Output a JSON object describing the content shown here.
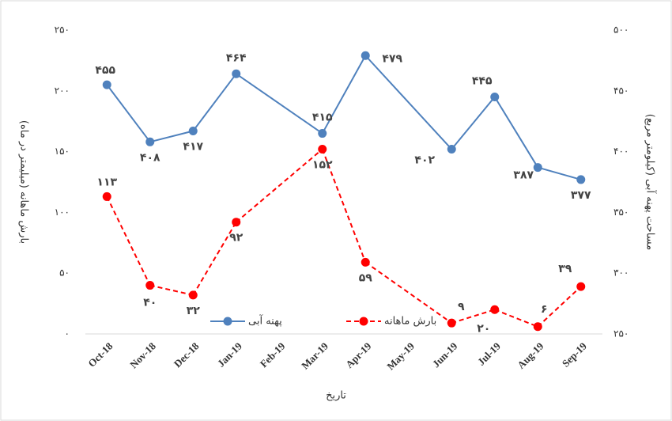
{
  "chart_data": {
    "type": "line",
    "x_label": "تاریخ",
    "y_label": "بارش ماهانه (میلیمتر در ماه)",
    "y2_label": "مساحت پهنه آبی (کیلومتر مربع)",
    "categories": [
      "Oct-18",
      "Nov-18",
      "Dec-18",
      "Jan-19",
      "Feb-19",
      "Mar-19",
      "Apr-19",
      "May-19",
      "Jun-19",
      "Jul-19",
      "Aug-19",
      "Sep-19"
    ],
    "ylim": [
      0,
      250
    ],
    "yticks": [
      {
        "value": 0,
        "label": "۰"
      },
      {
        "value": 50,
        "label": "۵۰"
      },
      {
        "value": 100,
        "label": "۱۰۰"
      },
      {
        "value": 150,
        "label": "۱۵۰"
      },
      {
        "value": 200,
        "label": "۲۰۰"
      },
      {
        "value": 250,
        "label": "۲۵۰"
      }
    ],
    "y2lim": [
      250,
      500
    ],
    "y2ticks": [
      {
        "value": 250,
        "label": "۲۵۰"
      },
      {
        "value": 300,
        "label": "۳۰۰"
      },
      {
        "value": 350,
        "label": "۳۵۰"
      },
      {
        "value": 400,
        "label": "۴۰۰"
      },
      {
        "value": 450,
        "label": "۴۵۰"
      },
      {
        "value": 500,
        "label": "۵۰۰"
      }
    ],
    "series": [
      {
        "name": "پهنه آبی",
        "color": "#4f81bd",
        "axis": "y2",
        "dash": false,
        "values": [
          455,
          408,
          417,
          464,
          null,
          415,
          479,
          null,
          402,
          445,
          387,
          377
        ],
        "value_labels": [
          "۴۵۵",
          "۴۰۸",
          "۴۱۷",
          "۴۶۴",
          null,
          "۴۱۵",
          "۴۷۹",
          null,
          "۴۰۲",
          "۴۴۵",
          "۳۸۷",
          "۳۷۷"
        ]
      },
      {
        "name": "بارش ماهانه",
        "color": "#ff0000",
        "axis": "y",
        "dash": true,
        "values": [
          113,
          40,
          32,
          92,
          null,
          152,
          59,
          null,
          9,
          20,
          6,
          39
        ],
        "value_labels": [
          "۱۱۳",
          "۴۰",
          "۳۲",
          "۹۲",
          null,
          "۱۵۲",
          "۵۹",
          null,
          "۹",
          "۲۰",
          "۶",
          "۳۹"
        ]
      }
    ],
    "legend": "bottom-center"
  }
}
